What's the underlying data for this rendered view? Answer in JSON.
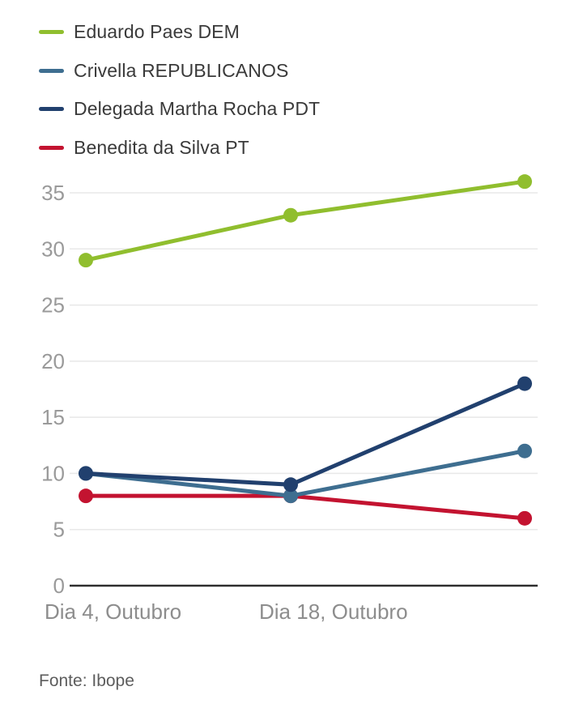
{
  "legend": {
    "items": [
      {
        "label": "Eduardo Paes DEM",
        "color": "#90BE2E"
      },
      {
        "label": "Crivella REPUBLICANOS",
        "color": "#3E6E90"
      },
      {
        "label": "Delegada Martha Rocha PDT",
        "color": "#21406E"
      },
      {
        "label": "Benedita da Silva PT",
        "color": "#C31330"
      }
    ]
  },
  "chart_data": {
    "type": "line",
    "x_tick_labels": [
      "Dia 4, Outubro",
      "Dia 18, Outubro"
    ],
    "categories": [
      "Dia 4, Outubro",
      "Dia 18, Outubro",
      ""
    ],
    "series": [
      {
        "name": "Eduardo Paes DEM",
        "color": "#90BE2E",
        "values": [
          29,
          33,
          36
        ]
      },
      {
        "name": "Crivella REPUBLICANOS",
        "color": "#3E6E90",
        "values": [
          10,
          8,
          12
        ]
      },
      {
        "name": "Delegada Martha Rocha PDT",
        "color": "#21406E",
        "values": [
          10,
          9,
          18
        ]
      },
      {
        "name": "Benedita da Silva PT",
        "color": "#C31330",
        "values": [
          8,
          8,
          6
        ]
      }
    ],
    "y_ticks": [
      0,
      5,
      10,
      15,
      20,
      25,
      30,
      35
    ],
    "ylim": [
      0,
      37
    ],
    "grid": true,
    "legend_position": "top-left",
    "title": "",
    "xlabel": "",
    "ylabel": ""
  },
  "source": {
    "label": "Fonte: Ibope"
  }
}
